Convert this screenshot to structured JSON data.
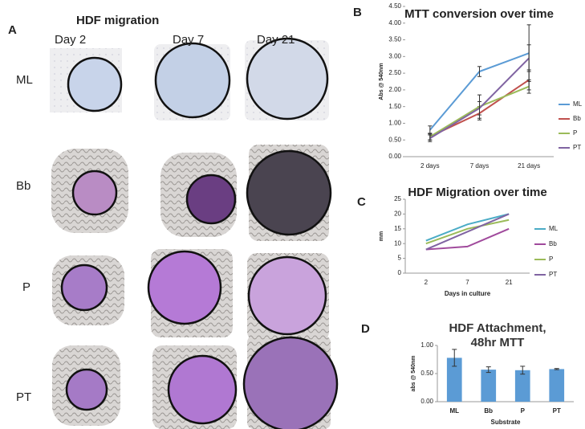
{
  "panel_a": {
    "label": "A",
    "title": "HDF migration",
    "columns": [
      "Day 2",
      "Day 7",
      "Day 21"
    ],
    "rows": [
      "ML",
      "Bb",
      "P",
      "PT"
    ]
  },
  "chart_data": [
    {
      "type": "line",
      "panel_label": "B",
      "title": "MTT conversion over time",
      "y_label": "Abs @ 540nm",
      "categories": [
        "2 days",
        "7 days",
        "21 days"
      ],
      "ylim": [
        0,
        4.5
      ],
      "yticks": [
        {
          "value": 0,
          "label": "0.00"
        },
        {
          "value": 0.5,
          "label": "0.50"
        },
        {
          "value": 1,
          "label": "1.00"
        },
        {
          "value": 1.5,
          "label": "1.50"
        },
        {
          "value": 2,
          "label": "2.00"
        },
        {
          "value": 2.5,
          "label": "2.50"
        },
        {
          "value": 3,
          "label": "3.00"
        },
        {
          "value": 3.5,
          "label": "3.50"
        },
        {
          "value": 4,
          "label": "4.00"
        },
        {
          "value": 4.5,
          "label": "4.50"
        }
      ],
      "series": [
        {
          "name": "ML",
          "color": "#5b9bd5",
          "values": [
            0.8,
            2.55,
            3.1
          ],
          "errors": [
            0.12,
            0.15,
            0.85
          ]
        },
        {
          "name": "Bb",
          "color": "#c0504d",
          "values": [
            0.6,
            1.3,
            2.3
          ],
          "errors": [
            0.1,
            0.2,
            0.3
          ]
        },
        {
          "name": "P",
          "color": "#9bbb59",
          "values": [
            0.6,
            1.5,
            2.1
          ],
          "errors": [
            0.1,
            0.35,
            0.2
          ]
        },
        {
          "name": "PT",
          "color": "#8064a2",
          "values": [
            0.55,
            1.45,
            2.95
          ],
          "errors": [
            0.1,
            0.2,
            0.4
          ]
        }
      ]
    },
    {
      "type": "line",
      "panel_label": "C",
      "title": "HDF Migration over time",
      "y_label": "mm",
      "x_label": "Days in culture",
      "categories": [
        "2",
        "7",
        "21"
      ],
      "ylim": [
        0,
        25
      ],
      "yticks": [
        0,
        5,
        10,
        15,
        20,
        25
      ],
      "series": [
        {
          "name": "ML",
          "color": "#4bacc6",
          "values": [
            11,
            16.5,
            20
          ]
        },
        {
          "name": "Bb",
          "color": "#a04a9c",
          "values": [
            8,
            9,
            15
          ]
        },
        {
          "name": "P",
          "color": "#9bbb59",
          "values": [
            10,
            15,
            18
          ]
        },
        {
          "name": "PT",
          "color": "#8064a2",
          "values": [
            8,
            14,
            20
          ]
        }
      ]
    },
    {
      "type": "bar",
      "panel_label": "D",
      "title": "HDF Attachment, 48hr MTT",
      "y_label": "abs @ 540nm",
      "x_label": "Substrate",
      "categories": [
        "ML",
        "Bb",
        "P",
        "PT"
      ],
      "values": [
        0.78,
        0.57,
        0.56,
        0.58
      ],
      "errors": [
        0.15,
        0.05,
        0.07,
        0.01
      ],
      "color": "#5b9bd5",
      "ylim": [
        0,
        1
      ],
      "yticks": [
        {
          "value": 0,
          "label": "0.00"
        },
        {
          "value": 0.5,
          "label": "0.50"
        },
        {
          "value": 1,
          "label": "1.00"
        }
      ]
    }
  ]
}
